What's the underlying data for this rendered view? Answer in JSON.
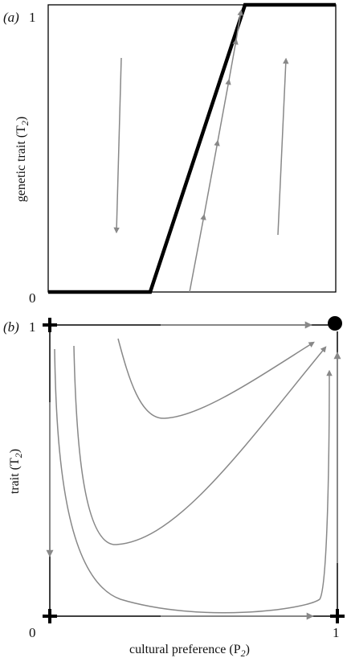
{
  "colors": {
    "background": "#ffffff",
    "frame": "#000000",
    "curve": "#888888",
    "nullcline": "#000000",
    "equilibrium": "#000000"
  },
  "panel_a": {
    "label": "(a)",
    "y_axis_label": "genetic trait (T",
    "y_axis_sub": "2",
    "y_axis_close": ")",
    "tick_top": "1",
    "tick_bottom": "0"
  },
  "panel_b": {
    "label": "(b)",
    "y_axis_label": "trait (T",
    "y_axis_sub": "2",
    "y_axis_close": ")",
    "x_axis_label": "cultural preference (P",
    "x_axis_sub": "2",
    "x_axis_close": ")",
    "tick_y_top": "1",
    "tick_origin": "0",
    "tick_x_right": "1"
  },
  "icons": {
    "stable_equilibrium": "filled-circle",
    "unstable_equilibrium": "plus-cross",
    "flow_direction": "arrowhead"
  }
}
